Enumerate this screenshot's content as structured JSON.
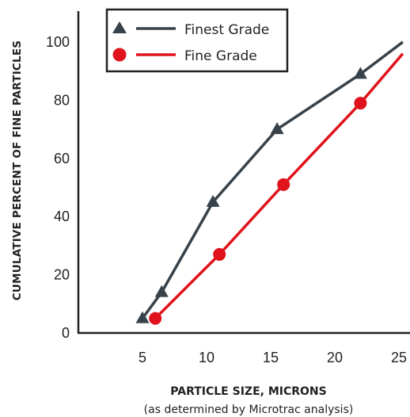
{
  "chart_data": {
    "type": "line",
    "xlabel": "PARTICLE SIZE, MICRONS",
    "xlabel_note": "(as determined by Microtrac analysis)",
    "ylabel": "CUMULATIVE PERCENT OF FINE PARTICLES",
    "xlim": [
      0,
      25
    ],
    "ylim": [
      0,
      100
    ],
    "x_ticks": [
      "5",
      "10",
      "15",
      "20",
      "25"
    ],
    "y_ticks": [
      "0",
      "20",
      "40",
      "60",
      "80",
      "100"
    ],
    "grid": false,
    "legend_position": "top-left",
    "series": [
      {
        "name": "Finest Grade",
        "color": "#37424a",
        "marker": "triangle",
        "points": [
          [
            5,
            5
          ],
          [
            6.5,
            14
          ],
          [
            10.5,
            45
          ],
          [
            15.5,
            70
          ],
          [
            22,
            89
          ]
        ],
        "line_end": [
          25.3,
          100
        ]
      },
      {
        "name": "Fine Grade",
        "color": "#e0131c",
        "marker": "circle",
        "points": [
          [
            6,
            5
          ],
          [
            11,
            27
          ],
          [
            16,
            51
          ],
          [
            22,
            79
          ]
        ],
        "line_end": [
          25.3,
          96
        ]
      }
    ]
  }
}
